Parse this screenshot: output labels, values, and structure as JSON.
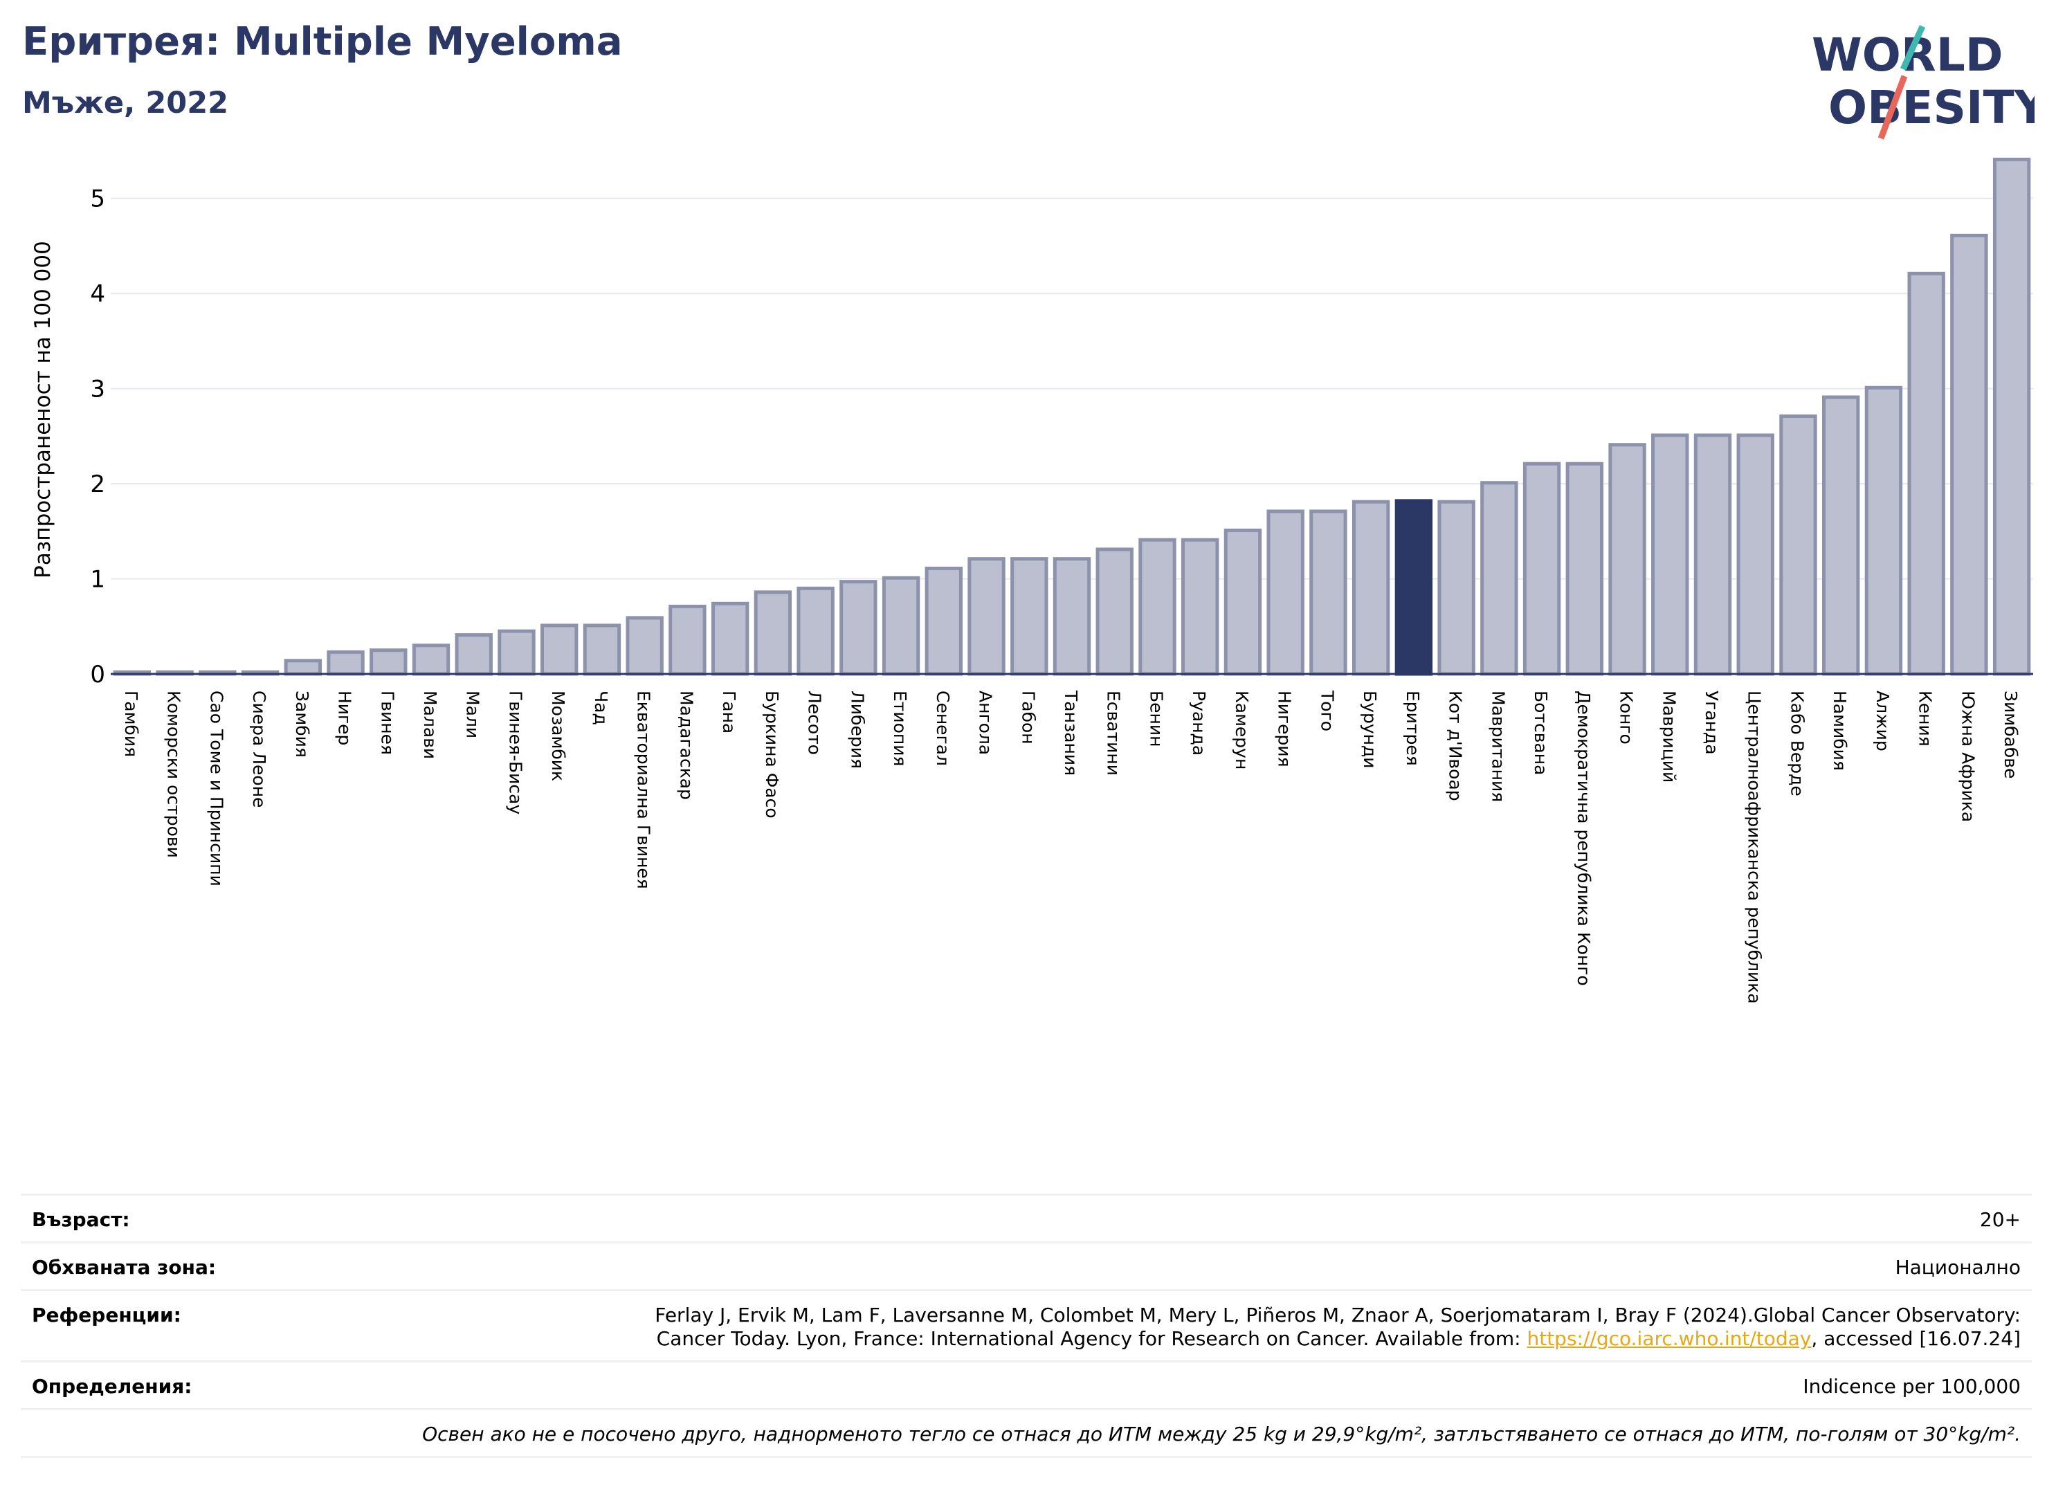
{
  "header": {
    "title": "Еритрея: Multiple Myeloma",
    "subtitle": "Мъже, 2022"
  },
  "logo": {
    "line1": "WORLD",
    "line2": "OBESITY",
    "colors": {
      "text": "#2b3764",
      "slash_teal": "#3fb9b0",
      "slash_red": "#e8675a"
    }
  },
  "chart_data": {
    "type": "bar",
    "ylabel": "Разпространеност  на 100 000",
    "ylim": [
      0,
      5.5
    ],
    "yticks": [
      0,
      1,
      2,
      3,
      4,
      5
    ],
    "grid": true,
    "highlight": "Еритрея",
    "colors": {
      "bar": "#bbbfcf",
      "bar_border": "#8c92ab",
      "highlight": "#2b3764"
    },
    "categories": [
      "Гамбия",
      "Коморски острови",
      "Сао Томе и Принсипи",
      "Сиера Леоне",
      "Замбия",
      "Нигер",
      "Гвинея",
      "Малави",
      "Мали",
      "Гвинея-Бисау",
      "Мозамбик",
      "Чад",
      "Екваториална Гвинея",
      "Мадагаскар",
      "Гана",
      "Буркина Фасо",
      "Лесото",
      "Либерия",
      "Етиопия",
      "Сенегал",
      "Ангола",
      "Габон",
      "Танзания",
      "Есватини",
      "Бенин",
      "Руанда",
      "Камерун",
      "Нигерия",
      "Того",
      "Бурунди",
      "Еритрея",
      "Кот д'Ивоар",
      "Мавритания",
      "Ботсвана",
      "Демократична република Конго",
      "Конго",
      "Мавриций",
      "Уганда",
      "Централноафриканска република",
      "Кабо Верде",
      "Намибия",
      "Алжир",
      "Кения",
      "Южна Африка",
      "Зимбабве"
    ],
    "values": [
      0.02,
      0.02,
      0.02,
      0.02,
      0.14,
      0.23,
      0.25,
      0.3,
      0.41,
      0.45,
      0.51,
      0.51,
      0.59,
      0.71,
      0.74,
      0.86,
      0.9,
      0.97,
      1.01,
      1.11,
      1.21,
      1.21,
      1.21,
      1.31,
      1.41,
      1.41,
      1.51,
      1.71,
      1.71,
      1.81,
      1.82,
      1.81,
      2.01,
      2.21,
      2.21,
      2.41,
      2.51,
      2.51,
      2.51,
      2.71,
      2.91,
      3.01,
      4.21,
      4.61,
      5.41
    ]
  },
  "info": {
    "age_label": "Възраст:",
    "age_value": "20+",
    "area_label": "Обхваната зона:",
    "area_value": "Национално",
    "refs_label": "Референции:",
    "refs_text_1": "Ferlay J, Ervik M, Lam F, Laversanne M, Colombet M, Mery L, Piñeros M, Znaor A, Soerjomataram I, Bray F (2024).Global Cancer Observatory:",
    "refs_text_2": "Cancer Today. Lyon, France: International Agency for Research on Cancer. Available from: ",
    "refs_link": "https://gco.iarc.who.int/today",
    "refs_text_3": ", accessed [16.07.24]",
    "defs_label": "Определения:",
    "defs_value": "Indicence per 100,000",
    "note": "Освен ако не е посочено друго, наднорменото тегло се отнася до ИТМ между 25 kg и 29,9°kg/m², затлъстяването се отнася до ИТМ, по-голям от 30°kg/m²."
  }
}
